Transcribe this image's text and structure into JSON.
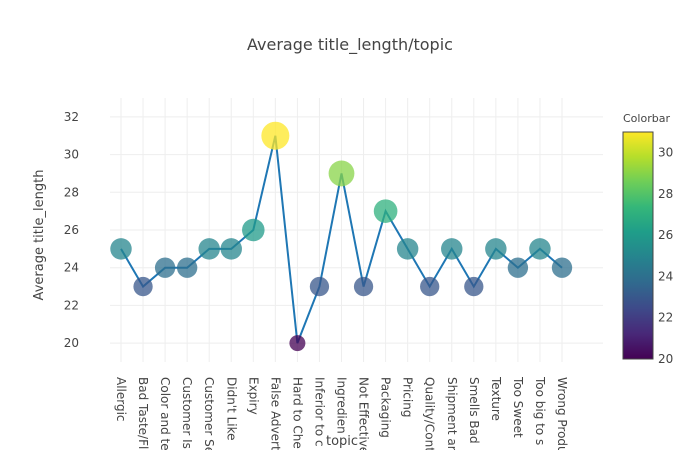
{
  "chart_data": {
    "type": "scatter",
    "title": "Average title_length/topic",
    "xlabel": "topic",
    "ylabel": "Average title_length",
    "ylim": [
      19,
      33
    ],
    "yticks": [
      20,
      22,
      24,
      26,
      28,
      30,
      32
    ],
    "grid": true,
    "categories": [
      "Allergic",
      "Bad Taste/Fl",
      "Color and te",
      "Customer Is",
      "Customer Se",
      "Didn't Like",
      "Expiry",
      "False Advert",
      "Hard to Che",
      "Inferior to c",
      "Ingredien",
      "Not Effective",
      "Packaging",
      "Pricing",
      "Quality/Cont",
      "Shipment ar",
      "Smells Bad",
      "Texture",
      "Too Sweet",
      "Too big to s",
      "Wrong Produ"
    ],
    "values": [
      25,
      23,
      24,
      24,
      25,
      25,
      26,
      31,
      20,
      23,
      29,
      23,
      27,
      25,
      23,
      25,
      23,
      25,
      24,
      25,
      24
    ],
    "line_color": "#1f77b4",
    "colorbar": {
      "title": "Colorbar",
      "range": [
        20,
        31
      ],
      "ticks": [
        20,
        22,
        24,
        26,
        28,
        30
      ],
      "colorscale": "viridis"
    }
  }
}
